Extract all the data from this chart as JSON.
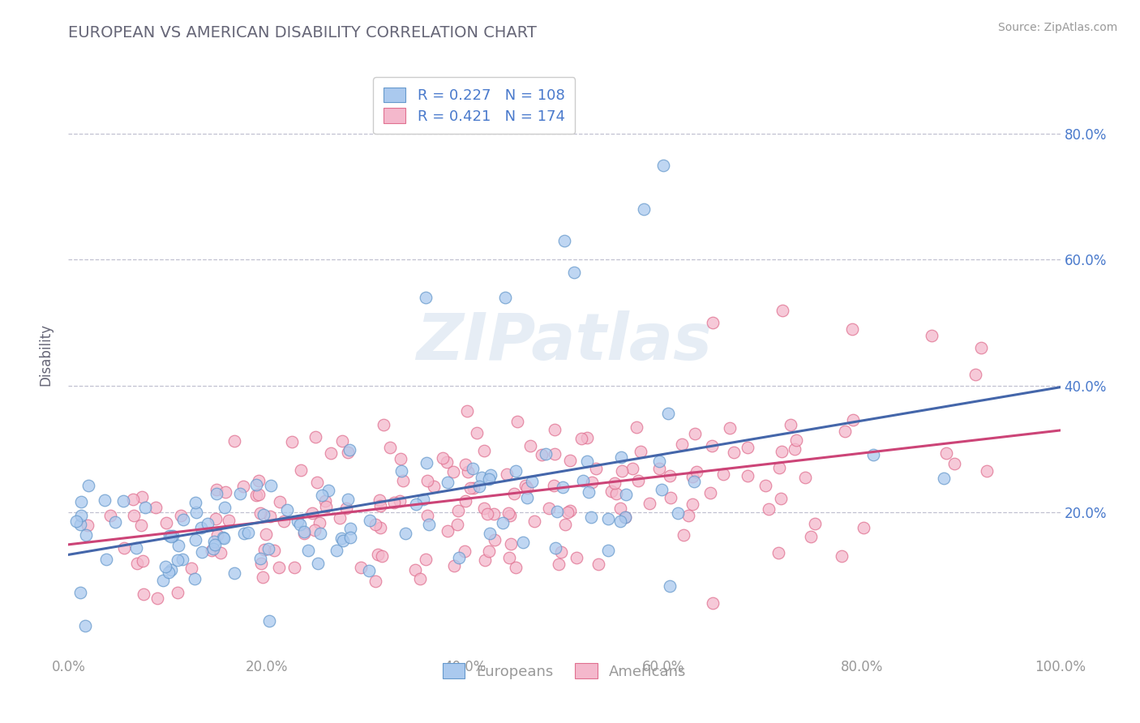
{
  "title": "EUROPEAN VS AMERICAN DISABILITY CORRELATION CHART",
  "source": "Source: ZipAtlas.com",
  "ylabel": "Disability",
  "xlim": [
    0.0,
    1.0
  ],
  "ylim": [
    -0.02,
    0.92
  ],
  "xticks": [
    0.0,
    0.2,
    0.4,
    0.6,
    0.8,
    1.0
  ],
  "yticks": [
    0.2,
    0.4,
    0.6,
    0.8
  ],
  "xticklabels": [
    "0.0%",
    "20.0%",
    "40.0%",
    "60.0%",
    "80.0%",
    "100.0%"
  ],
  "yticklabels": [
    "20.0%",
    "40.0%",
    "60.0%",
    "80.0%"
  ],
  "european_color": "#aac9ee",
  "american_color": "#f4b8cc",
  "european_edge": "#6699cc",
  "american_edge": "#e07090",
  "trend_european": "#4466aa",
  "trend_american": "#cc4477",
  "legend_r_european": "R = 0.227",
  "legend_n_european": "N = 108",
  "legend_r_american": "R = 0.421",
  "legend_n_american": "N = 174",
  "watermark": "ZIPatlas",
  "background": "#ffffff",
  "grid_color": "#bbbbcc",
  "title_color": "#666677",
  "axis_label_color": "#666677",
  "tick_color": "#999999",
  "right_tick_color": "#4a7acc",
  "european_n": 108,
  "american_n": 174,
  "eu_intercept": 0.155,
  "eu_slope": 0.135,
  "am_intercept": 0.155,
  "am_slope": 0.155
}
